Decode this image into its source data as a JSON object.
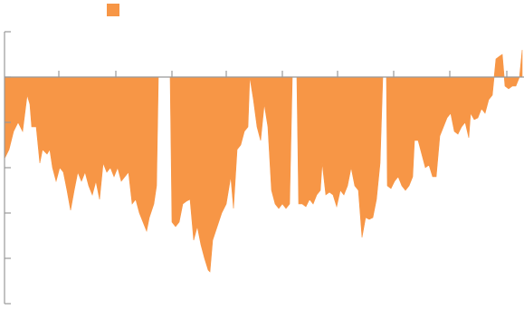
{
  "chart_data": {
    "type": "area",
    "color": "#f79646",
    "legend": true,
    "xlim": [
      0,
      574
    ],
    "xticks": [
      60,
      123,
      185,
      245,
      307,
      368,
      430,
      492,
      555
    ],
    "ylim": [
      -250,
      55
    ],
    "yticks": [
      50,
      0,
      -50,
      -100,
      -150,
      -200,
      -250
    ],
    "x": [
      0,
      5,
      10,
      15,
      20,
      25,
      28,
      30,
      35,
      39,
      42,
      47,
      50,
      53,
      57,
      61,
      65,
      69,
      73,
      77,
      81,
      85,
      89,
      93,
      97,
      101,
      105,
      109,
      113,
      117,
      121,
      125,
      129,
      133,
      137,
      141,
      145,
      149,
      153,
      157,
      160,
      165,
      168,
      170,
      175,
      183,
      185,
      189,
      193,
      197,
      201,
      205,
      209,
      213,
      217,
      221,
      225,
      227,
      230,
      235,
      240,
      245,
      250,
      253,
      257,
      261,
      265,
      269,
      271,
      275,
      279,
      283,
      287,
      291,
      295,
      299,
      303,
      307,
      311,
      315,
      318,
      323,
      325,
      329,
      333,
      337,
      341,
      345,
      349,
      351,
      355,
      359,
      363,
      367,
      371,
      375,
      379,
      383,
      387,
      391,
      395,
      399,
      403,
      407,
      411,
      415,
      418,
      422,
      423,
      427,
      431,
      435,
      439,
      443,
      447,
      451,
      453,
      457,
      461,
      465,
      469,
      473,
      477,
      481,
      485,
      489,
      493,
      497,
      501,
      505,
      509,
      513,
      515,
      519,
      523,
      527,
      531,
      535,
      539,
      541,
      543,
      547,
      550,
      553,
      557,
      561,
      565,
      569,
      572
    ],
    "values": [
      -90,
      -80,
      -60,
      -50,
      -60,
      -20,
      -30,
      -55,
      -55,
      -95,
      -80,
      -85,
      -80,
      -100,
      -115,
      -100,
      -105,
      -125,
      -147,
      -125,
      -105,
      -115,
      -105,
      -120,
      -130,
      -115,
      -135,
      -95,
      -105,
      -100,
      -110,
      -100,
      -115,
      -110,
      -105,
      -140,
      -135,
      -150,
      -160,
      -170,
      -155,
      -140,
      -120,
      0,
      0,
      0,
      -160,
      -165,
      -160,
      -140,
      -137,
      -135,
      -180,
      -165,
      -185,
      -200,
      -213,
      -215,
      -180,
      -165,
      -150,
      -140,
      -110,
      -145,
      -80,
      -75,
      -60,
      -55,
      0,
      -25,
      -55,
      -70,
      -30,
      -55,
      -125,
      -140,
      -145,
      -140,
      -145,
      -140,
      0,
      0,
      -140,
      -140,
      -143,
      -135,
      -140,
      -130,
      -125,
      -95,
      -130,
      -127,
      -130,
      -143,
      -125,
      -130,
      -120,
      -100,
      -120,
      -125,
      -177,
      -155,
      -157,
      -155,
      -135,
      -95,
      0,
      0,
      -120,
      -123,
      -115,
      -110,
      -120,
      -125,
      -120,
      -110,
      -70,
      -70,
      -85,
      -100,
      -97,
      -110,
      -110,
      -65,
      -55,
      -45,
      -40,
      -60,
      -63,
      -55,
      -50,
      -67,
      -40,
      -47,
      -45,
      -35,
      -40,
      -25,
      -20,
      0,
      20,
      23,
      25,
      -10,
      -13,
      -10,
      -10,
      0,
      30
    ]
  }
}
